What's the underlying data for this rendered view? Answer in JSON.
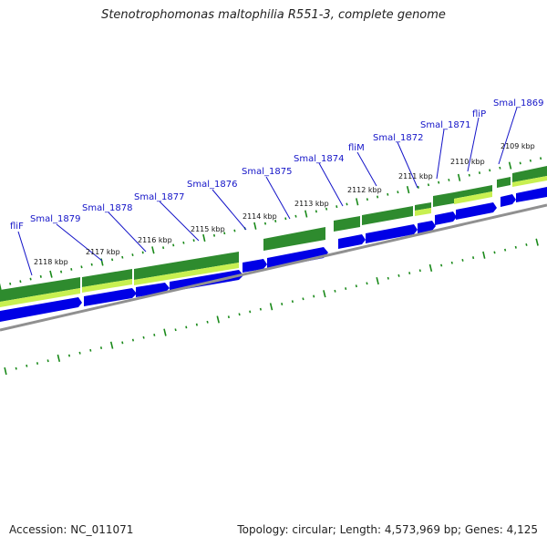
{
  "title": "Stenotrophomonas maltophilia R551-3, complete genome",
  "footer": {
    "accession": "Accession: NC_011071",
    "summary": "Topology: circular; Length: 4,573,969 bp; Genes: 4,125"
  },
  "colors": {
    "gene_label": "#1414c8",
    "leader": "#1414c8",
    "cds": "#0000e6",
    "feature_dark": "#2e8b2e",
    "feature_light": "#c8f050",
    "ticks": "#1a8a1a",
    "backbone": "#909090"
  },
  "kbp_labels": [
    "2118 kbp",
    "2117 kbp",
    "2116 kbp",
    "2115 kbp",
    "2114 kbp",
    "2113 kbp",
    "2112 kbp",
    "2111 kbp",
    "2110 kbp",
    "2109 kbp"
  ],
  "gene_labels": [
    "fliF",
    "Smal_1879",
    "Smal_1878",
    "Smal_1877",
    "Smal_1876",
    "Smal_1875",
    "Smal_1874",
    "fliM",
    "Smal_1872",
    "Smal_1871",
    "fliP",
    "Smal_1869"
  ]
}
